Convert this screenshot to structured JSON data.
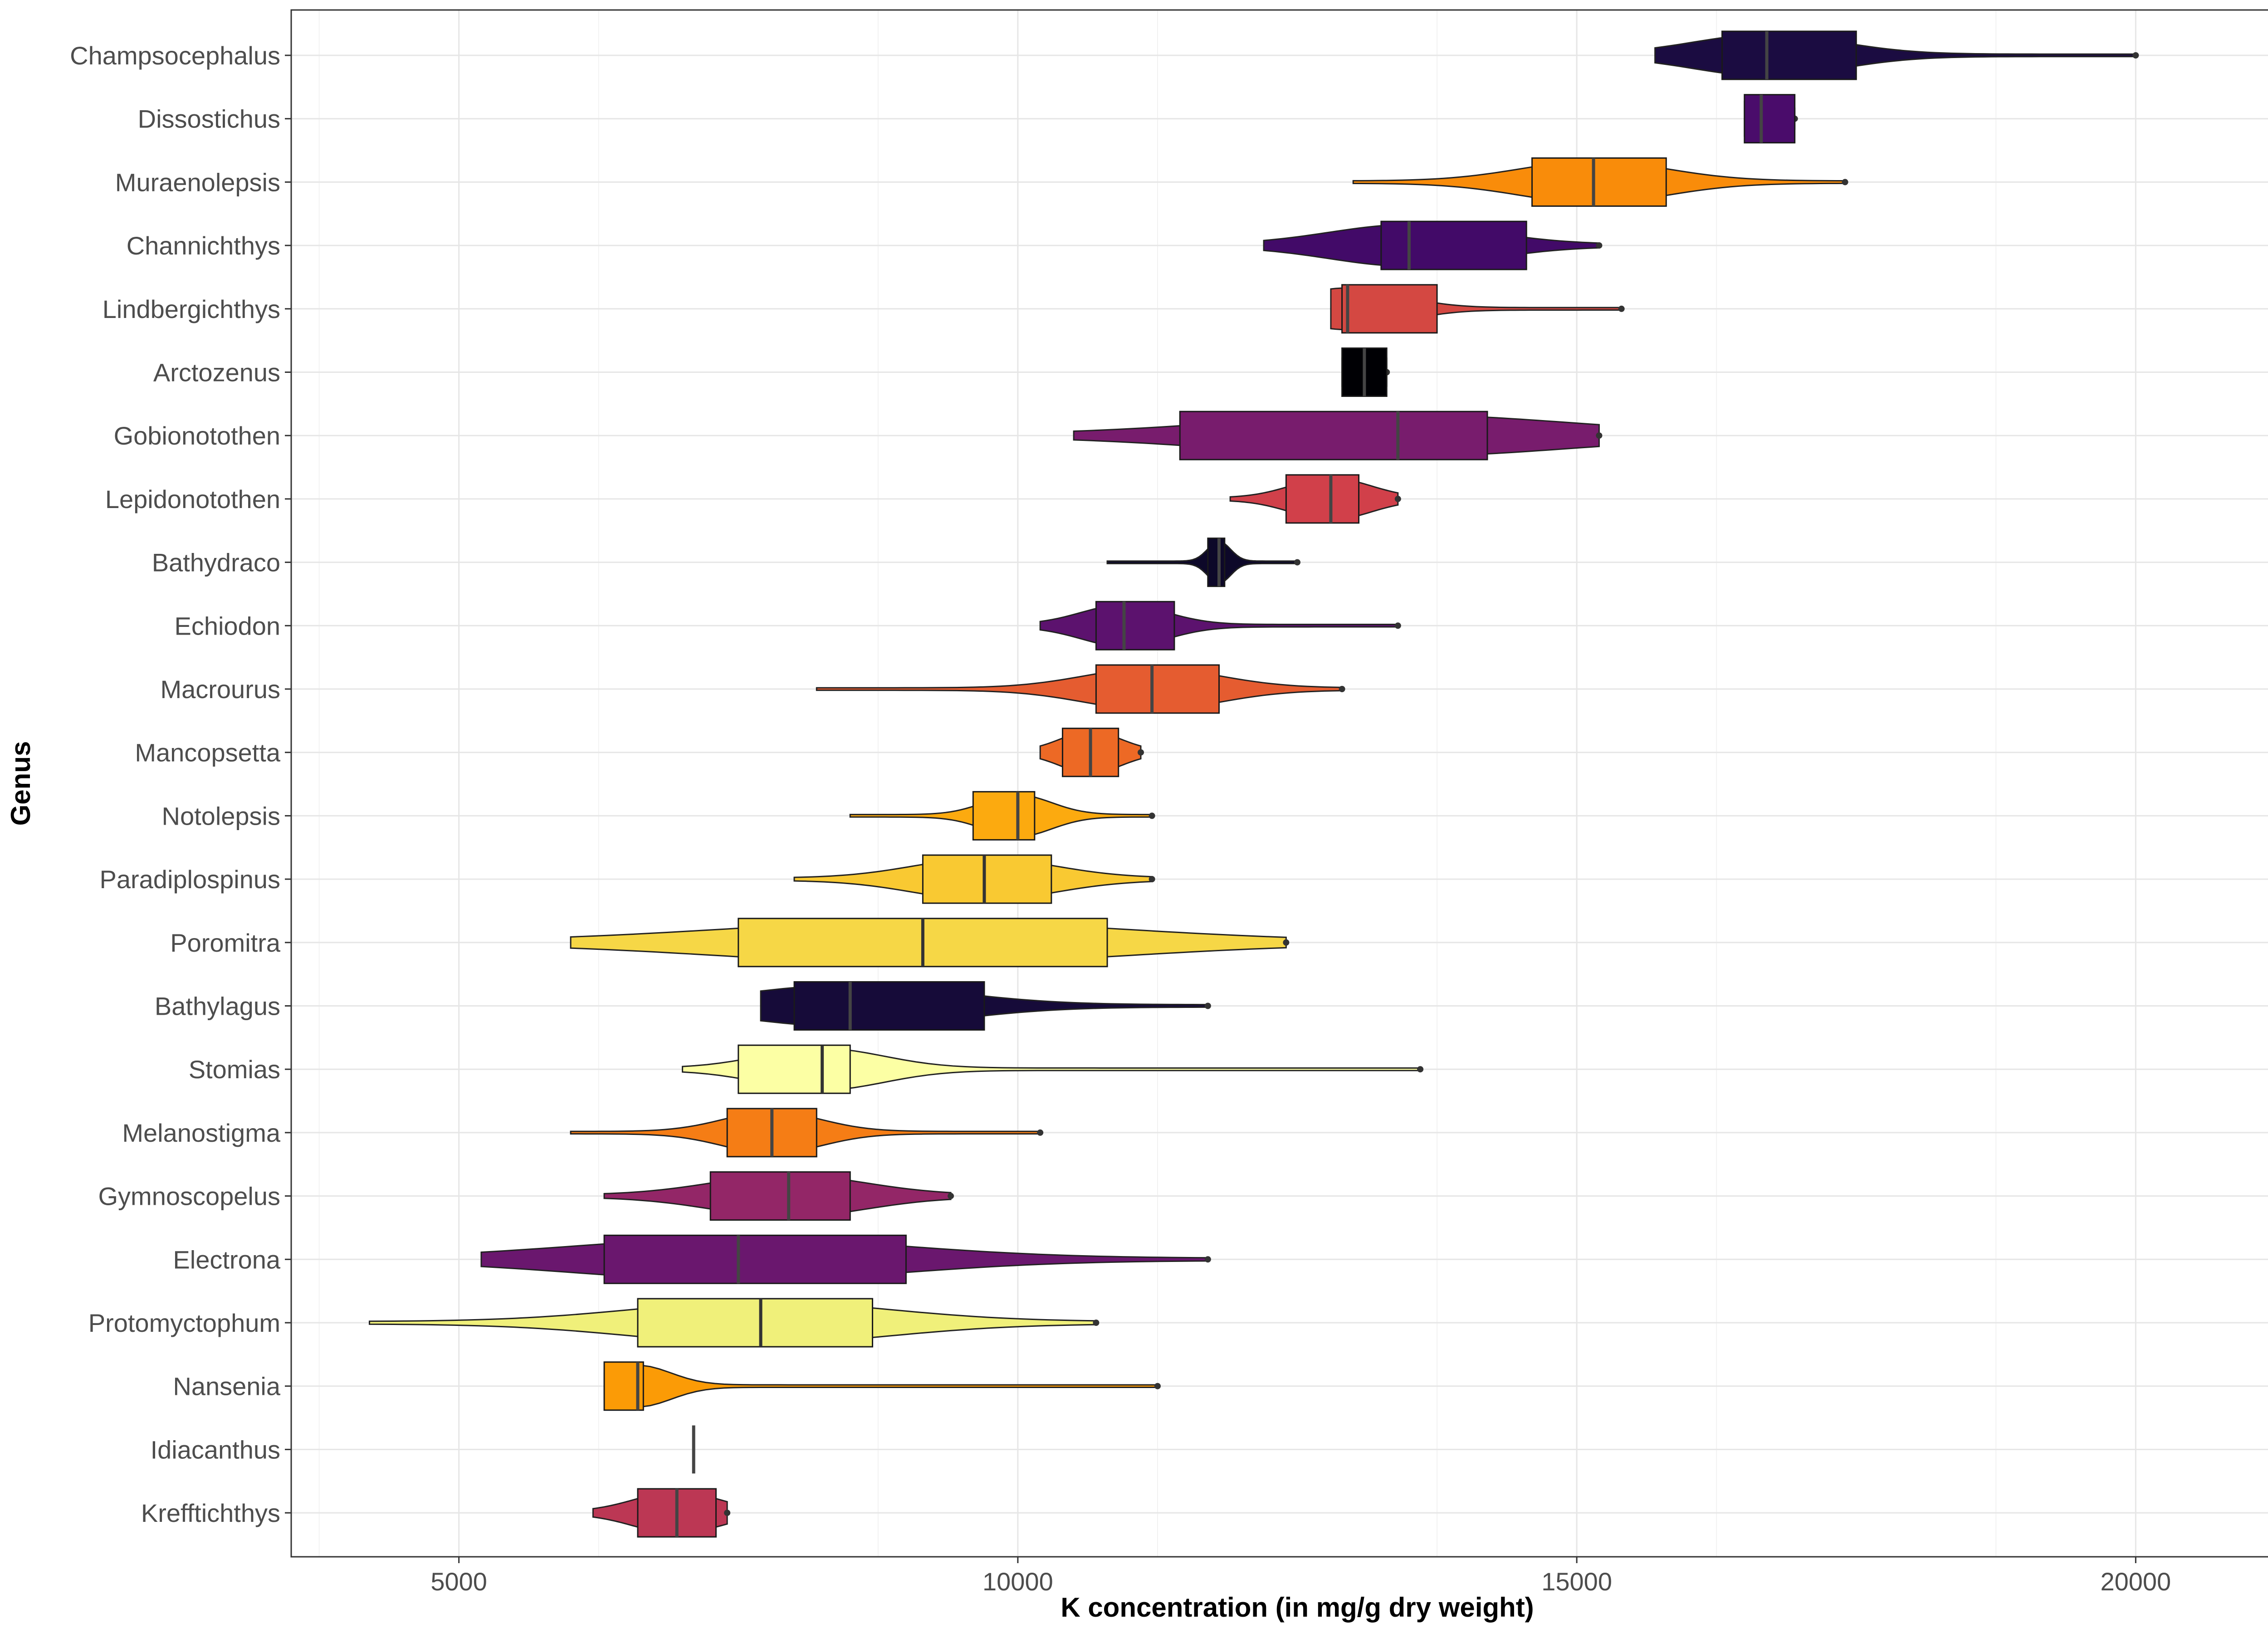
{
  "chart_data": {
    "type": "violin-box",
    "title": "",
    "xlabel": "K concentration (in mg/g dry weight)",
    "ylabel": "Genus",
    "xlim": [
      3500,
      21500
    ],
    "xticks": [
      5000,
      10000,
      15000,
      20000
    ],
    "xtick_labels": [
      "5000",
      "10000",
      "15000",
      "20000"
    ],
    "grid": true,
    "series": [
      {
        "genus": "Champsocephalus",
        "color": "#1B0C41",
        "min": 15700,
        "q1": 16300,
        "median": 16700,
        "q3": 17500,
        "max": 20000
      },
      {
        "genus": "Dissostichus",
        "color": "#4A0C6B",
        "min": 16500,
        "q1": 16500,
        "median": 16650,
        "q3": 16950,
        "max": 16950
      },
      {
        "genus": "Muraenolepsis",
        "color": "#F98C0A",
        "min": 13000,
        "q1": 14600,
        "median": 15150,
        "q3": 15800,
        "max": 17400
      },
      {
        "genus": "Channichthys",
        "color": "#420A68",
        "min": 12200,
        "q1": 13250,
        "median": 13500,
        "q3": 14550,
        "max": 15200
      },
      {
        "genus": "Lindbergichthys",
        "color": "#D44842",
        "min": 12800,
        "q1": 12900,
        "median": 12950,
        "q3": 13750,
        "max": 15400
      },
      {
        "genus": "Arctozenus",
        "color": "#000004",
        "min": 12900,
        "q1": 12900,
        "median": 13100,
        "q3": 13300,
        "max": 13300
      },
      {
        "genus": "Gobionotothen",
        "color": "#781C6D",
        "min": 10500,
        "q1": 11450,
        "median": 13400,
        "q3": 14200,
        "max": 15200
      },
      {
        "genus": "Lepidonotothen",
        "color": "#D1404A",
        "min": 11900,
        "q1": 12400,
        "median": 12800,
        "q3": 13050,
        "max": 13400
      },
      {
        "genus": "Bathydraco",
        "color": "#0D0829",
        "min": 10800,
        "q1": 11700,
        "median": 11800,
        "q3": 11850,
        "max": 12500
      },
      {
        "genus": "Echiodon",
        "color": "#5C126E",
        "min": 10200,
        "q1": 10700,
        "median": 10950,
        "q3": 11400,
        "max": 13400
      },
      {
        "genus": "Macrourus",
        "color": "#E55C30",
        "min": 8200,
        "q1": 10700,
        "median": 11200,
        "q3": 11800,
        "max": 12900
      },
      {
        "genus": "Mancopsetta",
        "color": "#ED6925",
        "min": 10200,
        "q1": 10400,
        "median": 10650,
        "q3": 10900,
        "max": 11100
      },
      {
        "genus": "Notolepsis",
        "color": "#FCAA0F",
        "min": 8500,
        "q1": 9600,
        "median": 10000,
        "q3": 10150,
        "max": 11200
      },
      {
        "genus": "Paradiplospinus",
        "color": "#F9C932",
        "min": 8000,
        "q1": 9150,
        "median": 9700,
        "q3": 10300,
        "max": 11200
      },
      {
        "genus": "Poromitra",
        "color": "#F6D746",
        "min": 6000,
        "q1": 7500,
        "median": 9150,
        "q3": 10800,
        "max": 12400
      },
      {
        "genus": "Bathylagus",
        "color": "#160B39",
        "min": 7700,
        "q1": 8000,
        "median": 8500,
        "q3": 9700,
        "max": 11700
      },
      {
        "genus": "Stomias",
        "color": "#FCFFA4",
        "min": 7000,
        "q1": 7500,
        "median": 8250,
        "q3": 8500,
        "max": 13600
      },
      {
        "genus": "Melanostigma",
        "color": "#F57D15",
        "min": 6000,
        "q1": 7400,
        "median": 7800,
        "q3": 8200,
        "max": 10200
      },
      {
        "genus": "Gymnoscopelus",
        "color": "#932667",
        "min": 6300,
        "q1": 7250,
        "median": 7950,
        "q3": 8500,
        "max": 9400
      },
      {
        "genus": "Electrona",
        "color": "#6A176E",
        "min": 5200,
        "q1": 6300,
        "median": 7500,
        "q3": 9000,
        "max": 11700
      },
      {
        "genus": "Protomyctophum",
        "color": "#F0F07A",
        "min": 4200,
        "q1": 6600,
        "median": 7700,
        "q3": 8700,
        "max": 10700
      },
      {
        "genus": "Nansenia",
        "color": "#FB9B06",
        "min": 6300,
        "q1": 6300,
        "median": 6600,
        "q3": 6650,
        "max": 11250
      },
      {
        "genus": "Idiacanthus",
        "color": "#000004",
        "min": 7100,
        "q1": 7100,
        "median": 7100,
        "q3": 7100,
        "max": 7100
      },
      {
        "genus": "Krefftichthys",
        "color": "#BC3754",
        "min": 6200,
        "q1": 6600,
        "median": 6950,
        "q3": 7300,
        "max": 7400
      }
    ]
  }
}
